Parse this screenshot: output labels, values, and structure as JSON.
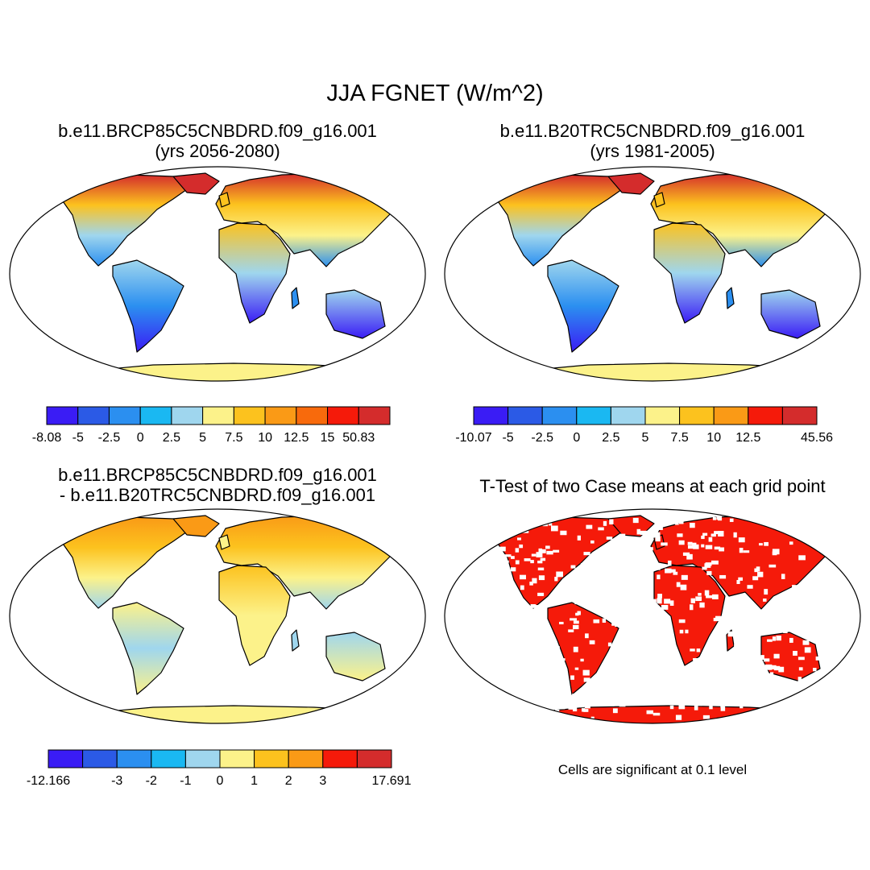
{
  "figure": {
    "title": "JJA FGNET (W/m^2)",
    "note": "Cells are significant at 0.1 level"
  },
  "panels": [
    {
      "id": "tl",
      "title_line1": "b.e11.BRCP85C5CNBDRD.f09_g16.001",
      "title_line2": "(yrs 2056-2080)",
      "colorbar": {
        "colors": [
          "#3a1cf5",
          "#2b5ae6",
          "#2b8ff0",
          "#1ab8f2",
          "#9fd6ee",
          "#fcf28a",
          "#fcc21e",
          "#fa9a16",
          "#f86a0c",
          "#f51a0a",
          "#d42c2c"
        ],
        "labels": [
          "-8.08",
          "-5",
          "-2.5",
          "0",
          "2.5",
          "5",
          "7.5",
          "10",
          "12.5",
          "15",
          "50.83"
        ]
      }
    },
    {
      "id": "tr",
      "title_line1": "b.e11.B20TRC5CNBDRD.f09_g16.001",
      "title_line2": "(yrs 1981-2005)",
      "colorbar": {
        "colors": [
          "#3a1cf5",
          "#2b5ae6",
          "#2b8ff0",
          "#1ab8f2",
          "#9fd6ee",
          "#fcf28a",
          "#fcc21e",
          "#fa9a16",
          "#f51a0a",
          "#d42c2c"
        ],
        "labels": [
          "-10.07",
          "-5",
          "-2.5",
          "0",
          "2.5",
          "5",
          "7.5",
          "10",
          "12.5",
          "",
          "45.56"
        ]
      }
    },
    {
      "id": "bl",
      "title_line1": "b.e11.BRCP85C5CNBDRD.f09_g16.001",
      "title_line2": "- b.e11.B20TRC5CNBDRD.f09_g16.001",
      "colorbar": {
        "colors": [
          "#3a1cf5",
          "#2b5ae6",
          "#2b8ff0",
          "#1ab8f2",
          "#9fd6ee",
          "#fcf28a",
          "#fcc21e",
          "#fa9a16",
          "#f51a0a",
          "#d42c2c"
        ],
        "labels": [
          "-12.166",
          "",
          "-3",
          "-2",
          "-1",
          "0",
          "1",
          "2",
          "3",
          "",
          "17.691"
        ]
      }
    },
    {
      "id": "br",
      "title_line1": "T-Test of two Case means at each grid point",
      "title_line2": ""
    }
  ]
}
